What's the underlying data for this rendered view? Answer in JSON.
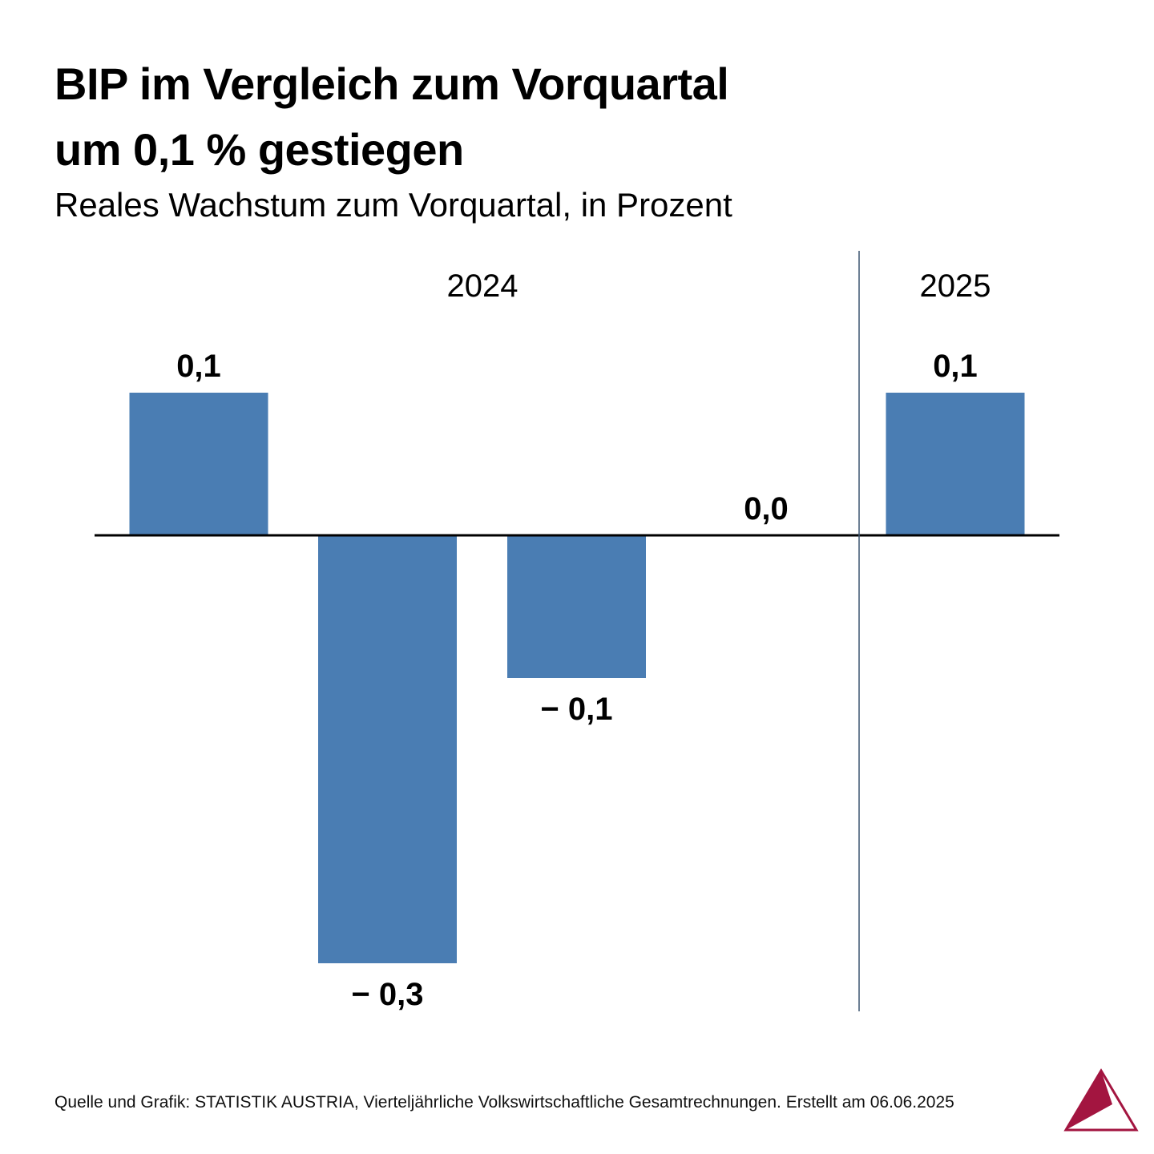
{
  "title_lines": [
    "BIP im Vergleich zum Vorquartal",
    "um 0,1 % gestiegen"
  ],
  "subtitle": "Reales Wachstum zum Vorquartal, in Prozent",
  "source": "Quelle und Grafik: STATISTIK AUSTRIA, Vierteljährliche Volkswirtschaftliche Gesamtrechnungen. Erstellt am 06.06.2025",
  "colors": {
    "bar": "#4a7db3",
    "axis": "#000000",
    "divider": "#3b5570",
    "logo": "#a31540"
  },
  "chart_data": {
    "type": "bar",
    "title": "BIP im Vergleich zum Vorquartal um 0,1 % gestiegen",
    "subtitle": "Reales Wachstum zum Vorquartal, in Prozent",
    "xlabel": "",
    "ylabel": "",
    "ylim": [
      -0.3,
      0.1
    ],
    "grid": false,
    "groups": [
      {
        "label": "2024",
        "count": 4
      },
      {
        "label": "2025",
        "count": 1
      }
    ],
    "values": [
      0.1,
      -0.3,
      -0.1,
      0.0,
      0.1
    ],
    "value_labels": [
      "0,1",
      "− 0,3",
      "− 0,1",
      "0,0",
      "0,1"
    ]
  }
}
